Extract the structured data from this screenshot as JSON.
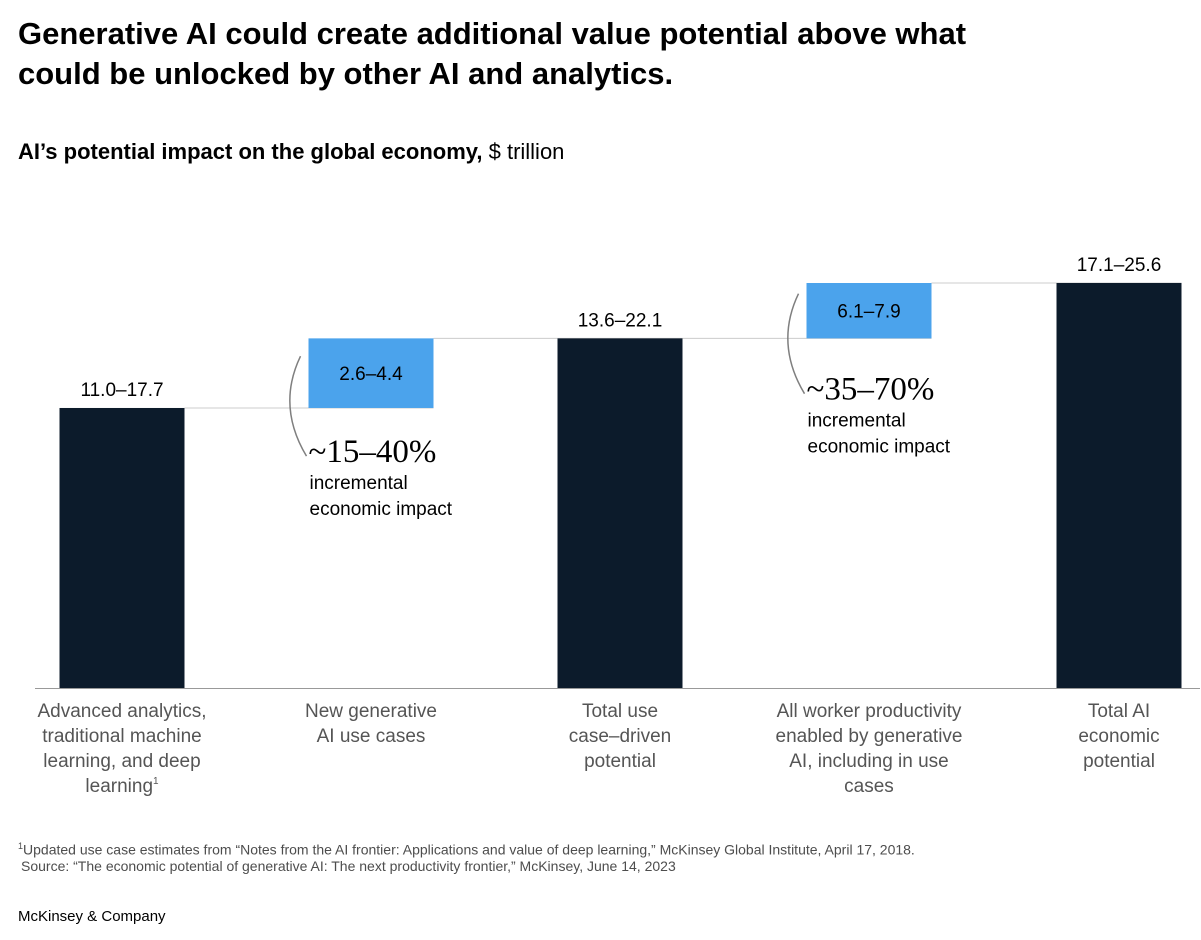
{
  "headline": "Generative AI could create additional value potential above what could be unlocked by other AI and analytics.",
  "subtitle_bold": "AI’s potential impact on the global economy,",
  "subtitle_unit": " $ trillion",
  "chart_data": {
    "type": "bar",
    "subtype": "waterfall",
    "unit": "$ trillion",
    "categories": [
      "Advanced analytics, traditional machine learning, and deep learning",
      "New generative AI use cases",
      "Total use case–driven potential",
      "All worker productivity enabled by generative AI, including in use cases",
      "Total AI economic potential"
    ],
    "category_label_lines": [
      [
        "Advanced analytics,",
        "traditional machine",
        "learning, and deep",
        "learning"
      ],
      [
        "New generative",
        "AI use cases"
      ],
      [
        "Total use",
        "case–driven",
        "potential"
      ],
      [
        "All worker productivity",
        "enabled by generative",
        "AI, including in use",
        "cases"
      ],
      [
        "Total AI",
        "economic",
        "potential"
      ]
    ],
    "footnote_marker_on_category": 0,
    "footnote_marker": "1",
    "value_labels": [
      "11.0–17.7",
      "2.6–4.4",
      "13.6–22.1",
      "6.1–7.9",
      "17.1–25.6"
    ],
    "ranges": [
      [
        11.0,
        17.7
      ],
      [
        2.6,
        4.4
      ],
      [
        13.6,
        22.1
      ],
      [
        6.1,
        7.9
      ],
      [
        17.1,
        25.6
      ]
    ],
    "bar_kind": [
      "total",
      "increment",
      "total",
      "increment",
      "total"
    ],
    "annotations": [
      {
        "category": 1,
        "big": "~15–40%",
        "lines": [
          "incremental",
          "economic impact"
        ]
      },
      {
        "category": 3,
        "big": "~35–70%",
        "lines": [
          "incremental",
          "economic impact"
        ]
      }
    ],
    "colors": {
      "total": "#0c1b2b",
      "increment": "#4ba3ec",
      "axis": "#999999",
      "guide": "#cccccc",
      "category_text": "#555555"
    }
  },
  "footnote": "Updated use case estimates from “Notes from the AI frontier: Applications and value of deep learning,” McKinsey Global Institute, April 17, 2018.",
  "footnote_marker": "1",
  "source": "Source: “The economic potential of generative AI: The next productivity frontier,” McKinsey, June 14, 2023",
  "brand": "McKinsey & Company"
}
